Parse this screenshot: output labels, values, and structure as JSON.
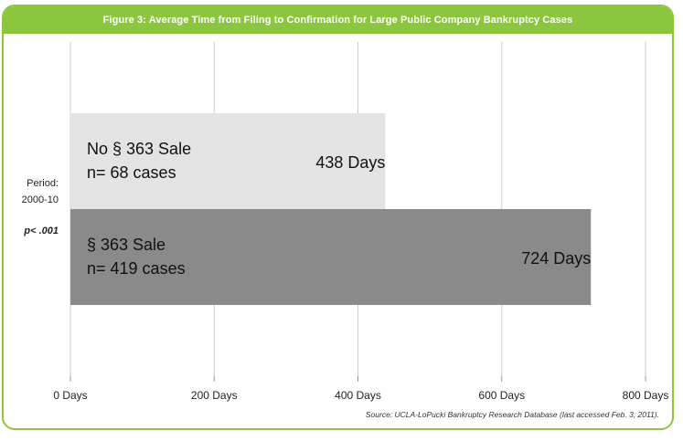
{
  "title": "Figure 3: Average Time from Filing to Confirmation for Large Public Company Bankruptcy Cases",
  "side": {
    "period_label": "Period:",
    "period_value": "2000-10",
    "pvalue": "p< .001"
  },
  "source": "Source: UCLA-LoPucki Bankruptcy Research Database (last accessed Feb. 3, 2011).",
  "colors": {
    "frame": "#8cc63f",
    "bar_no_sale": "#e3e3e3",
    "bar_sale": "#8a8a8a",
    "grid": "#cccccc"
  },
  "chart_data": {
    "type": "bar",
    "orientation": "horizontal",
    "title": "Figure 3: Average Time from Filing to Confirmation for Large Public Company Bankruptcy Cases",
    "xlim": [
      0,
      800
    ],
    "xticks": [
      0,
      200,
      400,
      600,
      800
    ],
    "xtick_labels": [
      "0 Days",
      "200 Days",
      "400 Days",
      "600 Days",
      "800 Days"
    ],
    "grid": "vertical",
    "bars": [
      {
        "label_line1": "No § 363 Sale",
        "label_line2": "n= 68 cases",
        "value": 438,
        "value_label": "438 Days"
      },
      {
        "label_line1": "§ 363 Sale",
        "label_line2": "n= 419 cases",
        "value": 724,
        "value_label": "724 Days"
      }
    ]
  }
}
